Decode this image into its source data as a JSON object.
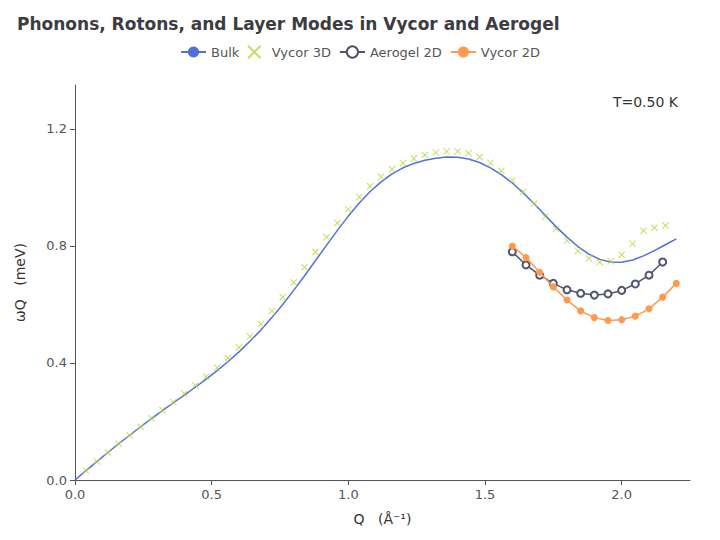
{
  "chart_data": {
    "type": "line",
    "title": "Phonons, Rotons, and Layer Modes in Vycor and Aerogel",
    "xlabel": "Q   (Å⁻¹)",
    "ylabel": "ωQ   (meV)",
    "annotation": "T=0.50 K",
    "xlim": [
      0.0,
      2.25
    ],
    "ylim": [
      0.0,
      1.35
    ],
    "xticks": [
      {
        "value": 0.0,
        "label": "0.0"
      },
      0.5,
      {
        "value": 1.0,
        "label": "1.0"
      },
      1.5,
      {
        "value": 2.0,
        "label": "2.0"
      }
    ],
    "yticks": [
      {
        "value": 0.0,
        "label": "0.0"
      },
      0.4,
      0.8,
      1.2
    ],
    "grid": false,
    "legend": "top",
    "series": [
      {
        "name": "Bulk",
        "type": "line",
        "marker": "none",
        "line_style": "solid",
        "x": [
          0.0,
          0.04,
          0.08,
          0.12,
          0.16,
          0.2,
          0.24,
          0.28,
          0.32,
          0.36,
          0.4,
          0.44,
          0.48,
          0.52,
          0.56,
          0.6,
          0.64,
          0.68,
          0.72,
          0.76,
          0.8,
          0.84,
          0.88,
          0.92,
          0.96,
          1.0,
          1.04,
          1.08,
          1.12,
          1.16,
          1.2,
          1.24,
          1.28,
          1.32,
          1.36,
          1.4,
          1.44,
          1.48,
          1.52,
          1.56,
          1.6,
          1.64,
          1.68,
          1.72,
          1.76,
          1.8,
          1.84,
          1.88,
          1.92,
          1.96,
          2.0,
          2.04,
          2.08,
          2.12,
          2.16,
          2.2
        ],
        "values": [
          0.0,
          0.032,
          0.063,
          0.094,
          0.124,
          0.153,
          0.182,
          0.21,
          0.237,
          0.264,
          0.29,
          0.317,
          0.345,
          0.374,
          0.405,
          0.438,
          0.474,
          0.513,
          0.555,
          0.6,
          0.648,
          0.698,
          0.75,
          0.802,
          0.853,
          0.902,
          0.947,
          0.986,
          1.019,
          1.046,
          1.067,
          1.082,
          1.093,
          1.1,
          1.104,
          1.103,
          1.097,
          1.085,
          1.067,
          1.044,
          1.015,
          0.981,
          0.944,
          0.905,
          0.866,
          0.83,
          0.798,
          0.772,
          0.754,
          0.745,
          0.744,
          0.752,
          0.766,
          0.784,
          0.804,
          0.824
        ]
      },
      {
        "name": "Vycor 3D",
        "type": "scatter",
        "marker": "x",
        "line_style": "none",
        "x": [
          0.04,
          0.08,
          0.12,
          0.16,
          0.2,
          0.24,
          0.28,
          0.32,
          0.36,
          0.4,
          0.44,
          0.48,
          0.52,
          0.56,
          0.6,
          0.64,
          0.68,
          0.72,
          0.76,
          0.8,
          0.84,
          0.88,
          0.92,
          0.96,
          1.0,
          1.04,
          1.08,
          1.12,
          1.16,
          1.2,
          1.24,
          1.28,
          1.32,
          1.36,
          1.4,
          1.44,
          1.48,
          1.52,
          1.56,
          1.6,
          1.64,
          1.68,
          1.72,
          1.76,
          1.8,
          1.84,
          1.88,
          1.92,
          1.96,
          2.0,
          2.04,
          2.08,
          2.12,
          2.16
        ],
        "values": [
          0.032,
          0.063,
          0.094,
          0.124,
          0.153,
          0.182,
          0.211,
          0.239,
          0.267,
          0.295,
          0.323,
          0.353,
          0.384,
          0.417,
          0.453,
          0.491,
          0.533,
          0.578,
          0.625,
          0.675,
          0.727,
          0.779,
          0.83,
          0.879,
          0.925,
          0.967,
          1.004,
          1.036,
          1.062,
          1.083,
          1.099,
          1.111,
          1.119,
          1.123,
          1.123,
          1.117,
          1.104,
          1.084,
          1.057,
          1.024,
          0.985,
          0.944,
          0.9,
          0.858,
          0.818,
          0.783,
          0.757,
          0.744,
          0.748,
          0.77,
          0.808,
          0.852,
          0.862,
          0.87
        ]
      },
      {
        "name": "Aerogel 2D",
        "type": "line",
        "marker": "circle_open",
        "line_style": "solid",
        "x": [
          1.6,
          1.65,
          1.7,
          1.75,
          1.8,
          1.85,
          1.9,
          1.95,
          2.0,
          2.05,
          2.1,
          2.15
        ],
        "values": [
          0.78,
          0.735,
          0.7,
          0.672,
          0.65,
          0.638,
          0.632,
          0.636,
          0.648,
          0.67,
          0.7,
          0.745
        ]
      },
      {
        "name": "Vycor 2D",
        "type": "line",
        "marker": "circle",
        "line_style": "solid",
        "x": [
          1.6,
          1.65,
          1.7,
          1.75,
          1.8,
          1.85,
          1.9,
          1.95,
          2.0,
          2.05,
          2.1,
          2.15,
          2.2
        ],
        "values": [
          0.8,
          0.76,
          0.71,
          0.66,
          0.615,
          0.578,
          0.555,
          0.545,
          0.548,
          0.56,
          0.585,
          0.625,
          0.672
        ]
      }
    ]
  }
}
